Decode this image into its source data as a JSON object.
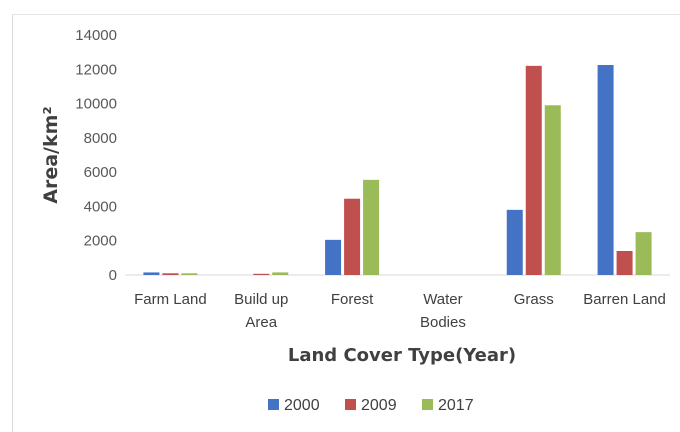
{
  "chart_data": {
    "type": "bar",
    "title": "",
    "ylabel": "Area/km²",
    "xlabel": "Land Cover Type(Year)",
    "ylim": [
      0,
      14000
    ],
    "yticks": [
      "0",
      "2000",
      "4000",
      "6000",
      "8000",
      "10000",
      "12000",
      "14000"
    ],
    "grid": false,
    "legend_position": "bottom",
    "categories": [
      [
        "Farm Land"
      ],
      [
        "Build up",
        "Area"
      ],
      [
        "Forest"
      ],
      [
        "Water",
        "Bodies"
      ],
      [
        "Grass"
      ],
      [
        "Barren Land"
      ]
    ],
    "series": [
      {
        "name": "2000",
        "color": "#4472c4",
        "values": [
          150,
          0,
          2050,
          0,
          3800,
          12250
        ]
      },
      {
        "name": "2009",
        "color": "#c0504d",
        "values": [
          100,
          70,
          4450,
          0,
          12200,
          1400
        ]
      },
      {
        "name": "2017",
        "color": "#9bbb59",
        "values": [
          100,
          150,
          5550,
          0,
          9900,
          2500
        ]
      }
    ]
  }
}
